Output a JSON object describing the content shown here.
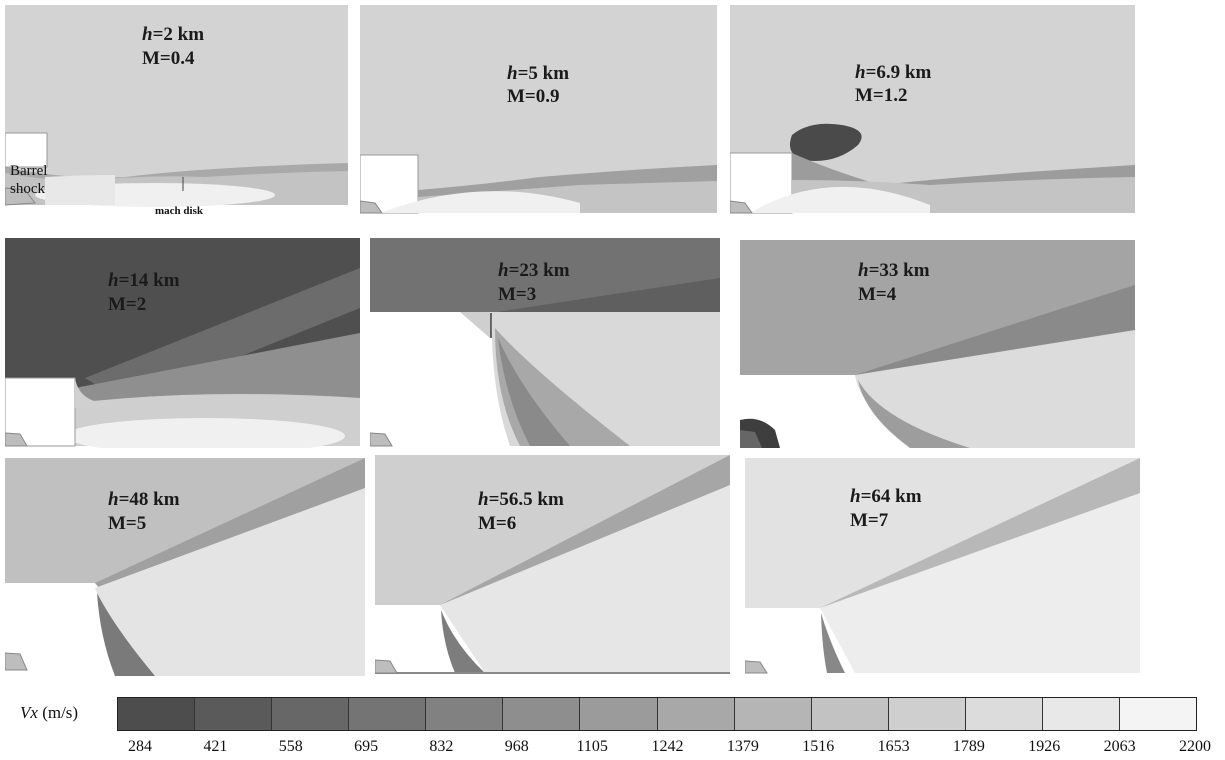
{
  "panels": [
    {
      "h_label": "h",
      "h_value": "=2 km",
      "m_label": "M=0.4"
    },
    {
      "h_label": "h",
      "h_value": "=5 km",
      "m_label": "M=0.9"
    },
    {
      "h_label": "h",
      "h_value": "=6.9 km",
      "m_label": "M=1.2"
    },
    {
      "h_label": "h",
      "h_value": "=14 km",
      "m_label": "M=2"
    },
    {
      "h_label": "h",
      "h_value": "=23 km",
      "m_label": "M=3"
    },
    {
      "h_label": "h",
      "h_value": "=33 km",
      "m_label": "M=4"
    },
    {
      "h_label": "h",
      "h_value": "=48 km",
      "m_label": "M=5"
    },
    {
      "h_label": "h",
      "h_value": "=56.5 km",
      "m_label": "M=6"
    },
    {
      "h_label": "h",
      "h_value": "=64 km",
      "m_label": "M=7"
    }
  ],
  "annotations": {
    "barrel_line1": "Barrel",
    "barrel_line2": "shock",
    "mach_disk": "mach disk"
  },
  "colorbar": {
    "variable": "Vx",
    "unit": " (m/s)",
    "ticks": [
      "284",
      "421",
      "558",
      "695",
      "832",
      "968",
      "1105",
      "1242",
      "1379",
      "1516",
      "1653",
      "1789",
      "1926",
      "2063",
      "2200"
    ],
    "colors": [
      "#4d4d4d",
      "#5a5a5a",
      "#676767",
      "#747474",
      "#818181",
      "#8e8e8e",
      "#9b9b9b",
      "#a8a8a8",
      "#b5b5b5",
      "#c2c2c2",
      "#cfcfcf",
      "#dcdcdc",
      "#e8e8e8",
      "#f4f4f4"
    ]
  }
}
